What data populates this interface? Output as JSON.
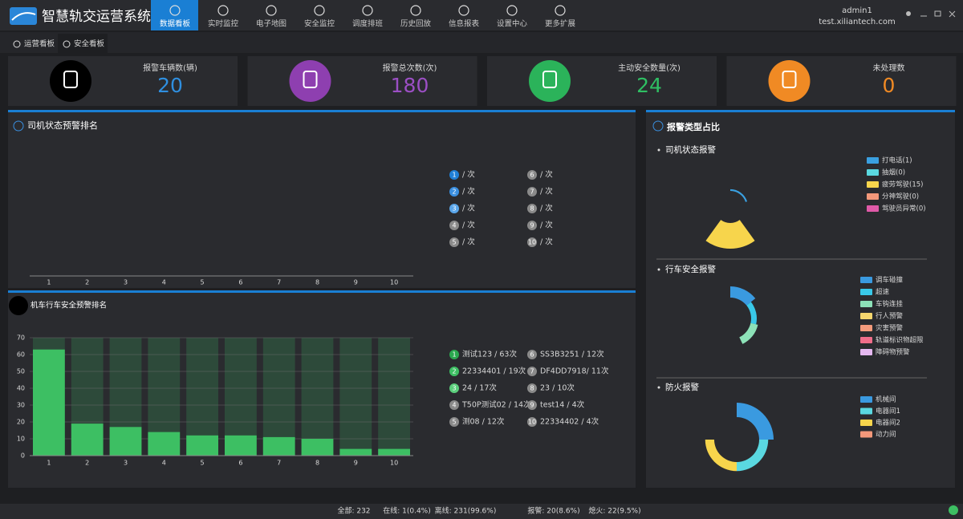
{
  "header": {
    "title": "智慧轨交运营系统",
    "nav": [
      "数据看板",
      "实时监控",
      "电子地图",
      "安全监控",
      "调度排班",
      "历史回放",
      "信息报表",
      "设置中心",
      "更多扩展"
    ],
    "active_nav": 0,
    "user": "admin1",
    "domain": "test.xiliantech.com"
  },
  "tabs": {
    "items": [
      "运营看板",
      "安全看板"
    ],
    "active": 1
  },
  "stats": [
    {
      "label": "报警车辆数(辆)",
      "value": 20,
      "color": "#2f8fe0",
      "icon_color": "#000000"
    },
    {
      "label": "报警总次数(次)",
      "value": 180,
      "color": "#9b4fc4",
      "icon_color": "#8e3fb0"
    },
    {
      "label": "主动安全数量(次)",
      "value": 24,
      "color": "#2fbf63",
      "icon_color": "#2bb35a"
    },
    {
      "label": "未处理数",
      "value": 0,
      "color": "#f08a24",
      "icon_color": "#f08a24"
    }
  ],
  "driver_ranking": {
    "title": "司机状态预警排名",
    "chart_data": {
      "type": "bar",
      "categories": [
        1,
        2,
        3,
        4,
        5,
        6,
        7,
        8,
        9,
        10
      ]
    },
    "ranks": [
      {
        "rank": 1,
        "text": "/ 次"
      },
      {
        "rank": 2,
        "text": "/ 次"
      },
      {
        "rank": 3,
        "text": "/ 次"
      },
      {
        "rank": 4,
        "text": "/ 次"
      },
      {
        "rank": 5,
        "text": "/ 次"
      },
      {
        "rank": 6,
        "text": "/ 次"
      },
      {
        "rank": 7,
        "text": "/ 次"
      },
      {
        "rank": 8,
        "text": "/ 次"
      },
      {
        "rank": 9,
        "text": "/ 次"
      },
      {
        "rank": 10,
        "text": "/ 次"
      }
    ],
    "rank_colors": [
      "#1f7fd6",
      "#3a8fe0",
      "#5aa6ea",
      "#8a8a8a",
      "#8a8a8a",
      "#8a8a8a",
      "#8a8a8a",
      "#8a8a8a",
      "#8a8a8a",
      "#8a8a8a"
    ]
  },
  "safety_ranking": {
    "title": "机车行车安全预警排名",
    "chart_data": {
      "type": "bar",
      "categories": [
        1,
        2,
        3,
        4,
        5,
        6,
        7,
        8,
        9,
        10
      ],
      "values": [
        63,
        19,
        17,
        14,
        12,
        12,
        11,
        10,
        4,
        4
      ],
      "color": "#3dbf63",
      "track_color": "#2d4a3a",
      "ylim": [
        0,
        70
      ],
      "yticks": [
        0,
        10,
        20,
        30,
        40,
        50,
        60,
        70
      ],
      "grid": true
    },
    "ranks": [
      {
        "rank": 1,
        "text": "测试123 / 63次"
      },
      {
        "rank": 2,
        "text": "22334401 / 19次"
      },
      {
        "rank": 3,
        "text": "24 / 17次"
      },
      {
        "rank": 4,
        "text": "T50P测试02 / 14次"
      },
      {
        "rank": 5,
        "text": "测08 / 12次"
      },
      {
        "rank": 6,
        "text": "SS3B3251 / 12次"
      },
      {
        "rank": 7,
        "text": "DF4DD7918/ 11次"
      },
      {
        "rank": 8,
        "text": "23 / 10次"
      },
      {
        "rank": 9,
        "text": "test14 / 4次"
      },
      {
        "rank": 10,
        "text": "22334402 / 4次"
      }
    ],
    "rank_colors": [
      "#2aa84f",
      "#3dbf63",
      "#5bcf7c",
      "#8a8a8a",
      "#8a8a8a",
      "#8a8a8a",
      "#8a8a8a",
      "#8a8a8a",
      "#8a8a8a",
      "#8a8a8a"
    ]
  },
  "alarm_types": {
    "title": "报警类型占比",
    "charts": [
      {
        "type": "rose",
        "title": "司机状态报警",
        "categories": [
          "打电话(1)",
          "抽烟(0)",
          "疲劳驾驶(15)",
          "分神驾驶(0)",
          "驾驶员异常(0)"
        ],
        "values": [
          1,
          0,
          15,
          0,
          0
        ],
        "colors": [
          "#3aa0e0",
          "#5ad8e0",
          "#f7d54c",
          "#f4987a",
          "#e05aa8"
        ]
      },
      {
        "type": "rose",
        "title": "行车安全报警",
        "categories": [
          "调车碰撞",
          "超速",
          "车钩连挂",
          "行人预警",
          "灾害预警",
          "轨道标识物超限",
          "障碍物预警"
        ],
        "values": [
          6,
          3,
          4,
          0,
          0,
          0,
          0
        ],
        "colors": [
          "#3a9ae0",
          "#39c8e8",
          "#8de2b8",
          "#f5d76e",
          "#f49b7c",
          "#f06d8a",
          "#e5b8f0"
        ]
      },
      {
        "type": "rose",
        "title": "防火报警",
        "categories": [
          "机械间",
          "电器间1",
          "电器间2",
          "动力间"
        ],
        "values": [
          8,
          5,
          5,
          0
        ],
        "colors": [
          "#3a9ae0",
          "#5ad8e0",
          "#f7d54c",
          "#f4987a"
        ]
      }
    ]
  },
  "status_bar": [
    "全部: 232",
    "在线: 1(0.4%)",
    "离线: 231(99.6%)",
    "报警: 20(8.6%)",
    "熄火: 22(9.5%)"
  ]
}
